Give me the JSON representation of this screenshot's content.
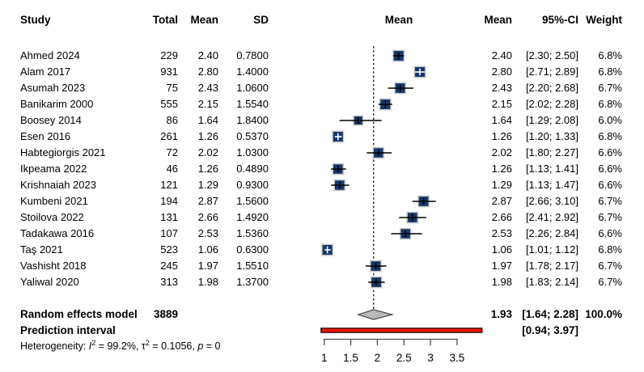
{
  "chart_data": {
    "type": "forest",
    "columns": {
      "study": "Study",
      "total": "Total",
      "mean": "Mean",
      "sd": "SD",
      "plot_header": "Mean",
      "mean2": "Mean",
      "ci": "95%-CI",
      "weight": "Weight"
    },
    "studies": [
      {
        "name": "Ahmed 2024",
        "total": 229,
        "mean": 2.4,
        "sd": 0.78,
        "ci": [
          2.3,
          2.5
        ],
        "weight": 6.8
      },
      {
        "name": "Alam 2017",
        "total": 931,
        "mean": 2.8,
        "sd": 1.4,
        "ci": [
          2.71,
          2.89
        ],
        "weight": 6.8
      },
      {
        "name": "Asumah 2023",
        "total": 75,
        "mean": 2.43,
        "sd": 1.06,
        "ci": [
          2.2,
          2.68
        ],
        "weight": 6.7
      },
      {
        "name": "Banikarim 2000",
        "total": 555,
        "mean": 2.15,
        "sd": 1.554,
        "ci": [
          2.02,
          2.28
        ],
        "weight": 6.8
      },
      {
        "name": "Boosey 2014",
        "total": 86,
        "mean": 1.64,
        "sd": 1.84,
        "ci": [
          1.29,
          2.08
        ],
        "weight": 6.0
      },
      {
        "name": "Esen 2016",
        "total": 261,
        "mean": 1.26,
        "sd": 0.537,
        "ci": [
          1.2,
          1.33
        ],
        "weight": 6.8
      },
      {
        "name": "Habtegiorgis 2021",
        "total": 72,
        "mean": 2.02,
        "sd": 1.03,
        "ci": [
          1.8,
          2.27
        ],
        "weight": 6.6
      },
      {
        "name": "Ikpeama 2022",
        "total": 46,
        "mean": 1.26,
        "sd": 0.489,
        "ci": [
          1.13,
          1.41
        ],
        "weight": 6.6
      },
      {
        "name": "Krishnaiah 2023",
        "total": 121,
        "mean": 1.29,
        "sd": 0.93,
        "ci": [
          1.13,
          1.47
        ],
        "weight": 6.6
      },
      {
        "name": "Kumbeni 2021",
        "total": 194,
        "mean": 2.87,
        "sd": 1.56,
        "ci": [
          2.66,
          3.1
        ],
        "weight": 6.7
      },
      {
        "name": "Stoilova 2022",
        "total": 131,
        "mean": 2.66,
        "sd": 1.492,
        "ci": [
          2.41,
          2.92
        ],
        "weight": 6.7
      },
      {
        "name": "Tadakawa 2016",
        "total": 107,
        "mean": 2.53,
        "sd": 1.536,
        "ci": [
          2.26,
          2.84
        ],
        "weight": 6.6
      },
      {
        "name": "Taş 2021",
        "total": 523,
        "mean": 1.06,
        "sd": 0.63,
        "ci": [
          1.01,
          1.12
        ],
        "weight": 6.8
      },
      {
        "name": "Vashisht 2018",
        "total": 245,
        "mean": 1.97,
        "sd": 1.551,
        "ci": [
          1.78,
          2.17
        ],
        "weight": 6.7
      },
      {
        "name": "Yaliwal 2020",
        "total": 313,
        "mean": 1.98,
        "sd": 1.37,
        "ci": [
          1.83,
          2.14
        ],
        "weight": 6.7
      }
    ],
    "summary": {
      "label": "Random effects model",
      "total": 3889,
      "mean": 1.93,
      "ci": [
        1.64,
        2.28
      ],
      "weight_label": "100.0%"
    },
    "prediction": {
      "label": "Prediction interval",
      "ci": [
        0.94,
        3.97
      ]
    },
    "heterogeneity": {
      "prefix": "Heterogeneity: ",
      "i2_name": "I",
      "i2_sup": "2",
      "i2_val": " = 99.2%, ",
      "tau_name": "τ",
      "tau_sup": "2",
      "tau_val": " = 0.1056, ",
      "p_name": "p",
      "p_val": " = 0"
    },
    "axis": {
      "ticks": [
        1,
        1.5,
        2,
        2.5,
        3,
        3.5
      ],
      "range": [
        1,
        3.5
      ]
    },
    "ref_line": 1.93
  },
  "colors": {
    "marker_fill": "#16386b",
    "marker_border": "#c9c9c9",
    "whisker_black": "#000000",
    "whisker_white": "#ffffff",
    "diamond_fill": "#b9b9b9",
    "diamond_border": "#3a3a3a",
    "prediction_fill": "#ee1100",
    "prediction_border": "#000000",
    "axis_color": "#4d4d4d",
    "ref_line_color": "#000000",
    "text_color": "#000000"
  }
}
